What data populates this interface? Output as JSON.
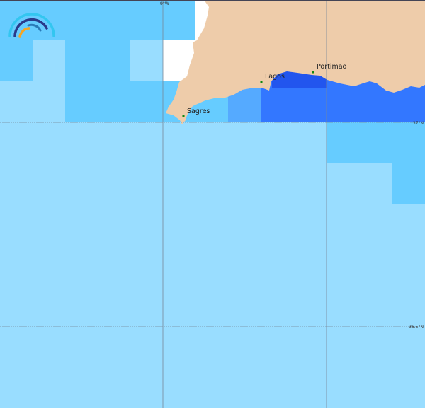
{
  "map": {
    "places": [
      {
        "name": "Sagres"
      },
      {
        "name": "Lagos"
      },
      {
        "name": "Portimao"
      }
    ],
    "graticule": {
      "lon_label": "9°W",
      "lat_labels": [
        "37°N",
        "36.5°N"
      ]
    },
    "colors": {
      "land": "#eeccaa",
      "sea_light": "#99ddff",
      "sea_mid": "#66ccff",
      "sea_deeper": "#55aaff",
      "sea_dark": "#3377ff",
      "sea_coastal": "#2255ee",
      "no_data": "#ffffff",
      "place_dot": "#118811"
    },
    "logo": "wave-arcs-logo"
  }
}
